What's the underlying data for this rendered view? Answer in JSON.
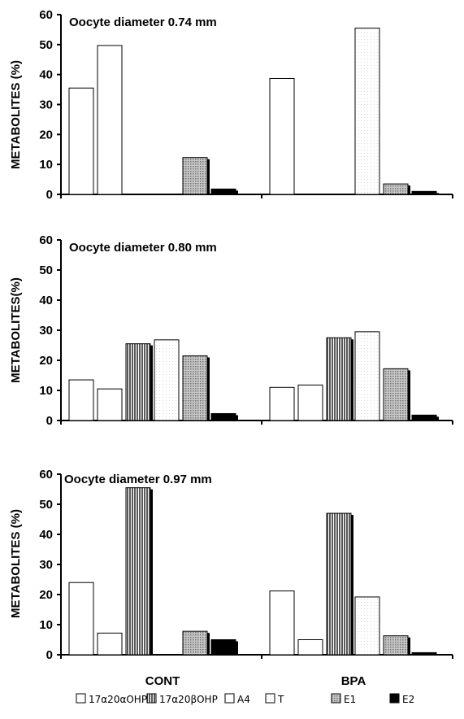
{
  "colors": {
    "17a20aOHP": "#ffffff",
    "17a20bOHP": "#808080",
    "A4": "#ffffff",
    "T": "#ffffff",
    "E1": "#909090",
    "E2": "#000000"
  },
  "series_names": [
    "17α20αOHP",
    "17α20βOHP",
    "A4",
    "T",
    "E1",
    "E2"
  ],
  "chart_data": [
    {
      "type": "bar",
      "title": "Oocyte diameter 0.74 mm",
      "ylabel": "METABOLITES (%)",
      "ylim": [
        0,
        60
      ],
      "yticks": [
        "0",
        "10",
        "20",
        "30",
        "40",
        "50",
        "60"
      ],
      "categories": [
        "CONT",
        "BPA"
      ],
      "series": [
        {
          "name": "17α20αOHP",
          "values": [
            35.5,
            38.7
          ]
        },
        {
          "name": "17α20βOHP",
          "values": [
            null,
            null
          ]
        },
        {
          "name": "A4",
          "values": [
            49.7,
            null
          ]
        },
        {
          "name": "T",
          "values": [
            null,
            55.5
          ]
        },
        {
          "name": "E1",
          "values": [
            12.3,
            3.5
          ]
        },
        {
          "name": "E2",
          "values": [
            1.8,
            1.0
          ]
        }
      ]
    },
    {
      "type": "bar",
      "title": "Oocyte diameter 0.80 mm",
      "ylabel": "METABOLITES(%)",
      "ylim": [
        0,
        60
      ],
      "yticks": [
        "0",
        "10",
        "20",
        "30",
        "40",
        "50",
        "60"
      ],
      "categories": [
        "CONT",
        "BPA"
      ],
      "series": [
        {
          "name": "17α20αOHP",
          "values": [
            13.5,
            11.0
          ]
        },
        {
          "name": "17α20βOHP",
          "values": [
            25.5,
            27.5
          ]
        },
        {
          "name": "A4",
          "values": [
            10.5,
            11.8
          ]
        },
        {
          "name": "T",
          "values": [
            26.8,
            29.5
          ]
        },
        {
          "name": "E1",
          "values": [
            21.5,
            17.2
          ]
        },
        {
          "name": "E2",
          "values": [
            2.3,
            1.8
          ]
        }
      ]
    },
    {
      "type": "bar",
      "title": "Oocyte diameter 0.97 mm",
      "ylabel": "METABOLITES (%)",
      "ylim": [
        0,
        60
      ],
      "yticks": [
        "0",
        "10",
        "20",
        "30",
        "40",
        "50",
        "60"
      ],
      "categories": [
        "CONT",
        "BPA"
      ],
      "series": [
        {
          "name": "17α20αOHP",
          "values": [
            24.0,
            21.2
          ]
        },
        {
          "name": "17α20βOHP",
          "values": [
            55.5,
            47.0
          ]
        },
        {
          "name": "A4",
          "values": [
            7.2,
            5.0
          ]
        },
        {
          "name": "T",
          "values": [
            null,
            19.2
          ]
        },
        {
          "name": "E1",
          "values": [
            7.8,
            6.3
          ]
        },
        {
          "name": "E2",
          "values": [
            5.0,
            0.7
          ]
        }
      ]
    }
  ],
  "x_categories": [
    "CONT",
    "BPA"
  ],
  "legend": [
    {
      "label": "17α20αOHP",
      "key": "17a20aOHP"
    },
    {
      "label": "17α20βOHP",
      "key": "17a20bOHP"
    },
    {
      "label": "A4",
      "key": "A4"
    },
    {
      "label": "T",
      "key": "T"
    },
    {
      "label": "E1",
      "key": "E1"
    },
    {
      "label": "E2",
      "key": "E2"
    }
  ]
}
